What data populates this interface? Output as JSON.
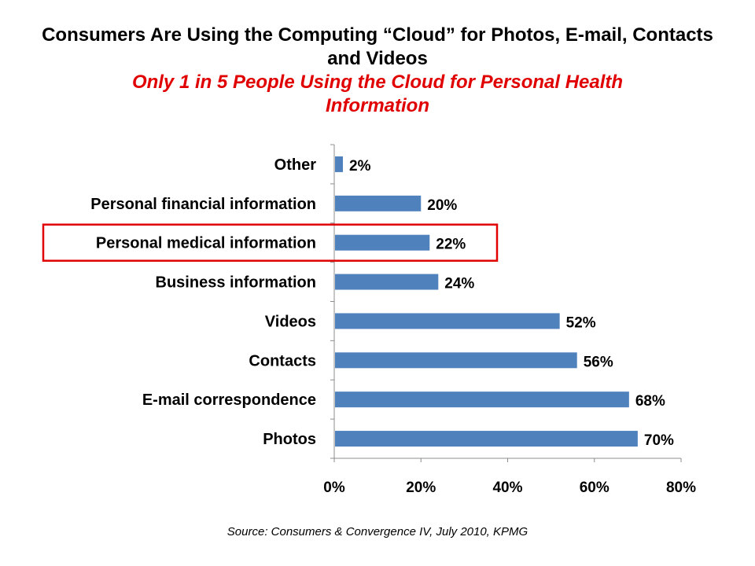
{
  "title": "Consumers Are Using the Computing “Cloud” for Photos, E-mail, Contacts and Videos",
  "subtitle": "Only 1 in 5 People Using the Cloud for Personal Health Information",
  "source": "Source: Consumers & Convergence IV, July 2010, KPMG",
  "colors": {
    "bar": "#4f81bd",
    "subtitle": "#e00000",
    "highlight_box": "#e00000",
    "axis": "#8c8c8c",
    "text": "#000000"
  },
  "chart_data": {
    "type": "bar",
    "orientation": "horizontal",
    "categories": [
      "Other",
      "Personal financial information",
      "Personal medical information",
      "Business information",
      "Videos",
      "Contacts",
      "E-mail correspondence",
      "Photos"
    ],
    "values": [
      2,
      20,
      22,
      24,
      52,
      56,
      68,
      70
    ],
    "data_labels": [
      "2%",
      "20%",
      "22%",
      "24%",
      "52%",
      "56%",
      "68%",
      "70%"
    ],
    "x_ticks": [
      0,
      20,
      40,
      60,
      80
    ],
    "x_tick_labels": [
      "0%",
      "20%",
      "40%",
      "60%",
      "80%"
    ],
    "xlim": [
      0,
      80
    ],
    "grid": false,
    "legend": "none",
    "highlighted_category": "Personal medical information"
  }
}
